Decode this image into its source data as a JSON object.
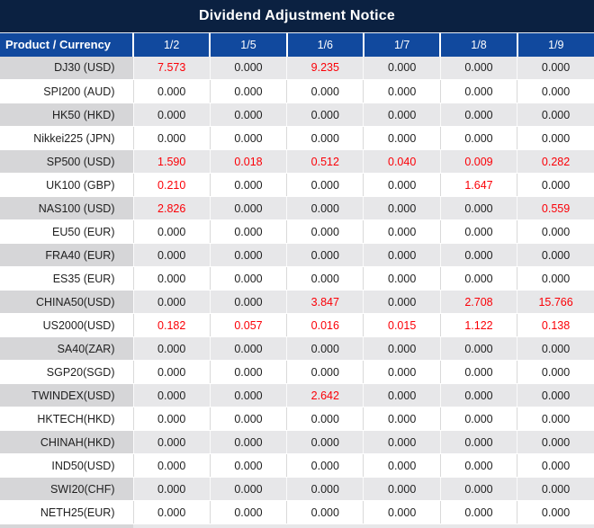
{
  "title": "Dividend Adjustment Notice",
  "colors": {
    "title-bg": "#0b2141",
    "header-bg": "#11499e",
    "row-gray-product": "#d6d6d8",
    "row-gray-value": "#e7e7e9",
    "row-white": "#ffffff",
    "text-dark": "#1f1f1f",
    "text-red": "#fb0007",
    "sep-gray": "#d9d9d9",
    "sep-white": "#fafafa"
  },
  "chart_data": {
    "type": "table",
    "title": "Dividend Adjustment Notice",
    "columns": [
      "Product / Currency",
      "1/2",
      "1/5",
      "1/6",
      "1/7",
      "1/8",
      "1/9"
    ],
    "rows": [
      {
        "product": "DJ30 (USD)",
        "values": [
          "7.573",
          "0.000",
          "9.235",
          "0.000",
          "0.000",
          "0.000"
        ],
        "red": [
          true,
          false,
          true,
          false,
          false,
          false
        ]
      },
      {
        "product": "SPI200 (AUD)",
        "values": [
          "0.000",
          "0.000",
          "0.000",
          "0.000",
          "0.000",
          "0.000"
        ],
        "red": [
          false,
          false,
          false,
          false,
          false,
          false
        ]
      },
      {
        "product": "HK50 (HKD)",
        "values": [
          "0.000",
          "0.000",
          "0.000",
          "0.000",
          "0.000",
          "0.000"
        ],
        "red": [
          false,
          false,
          false,
          false,
          false,
          false
        ]
      },
      {
        "product": "Nikkei225 (JPN)",
        "values": [
          "0.000",
          "0.000",
          "0.000",
          "0.000",
          "0.000",
          "0.000"
        ],
        "red": [
          false,
          false,
          false,
          false,
          false,
          false
        ]
      },
      {
        "product": "SP500 (USD)",
        "values": [
          "1.590",
          "0.018",
          "0.512",
          "0.040",
          "0.009",
          "0.282"
        ],
        "red": [
          true,
          true,
          true,
          true,
          true,
          true
        ]
      },
      {
        "product": "UK100 (GBP)",
        "values": [
          "0.210",
          "0.000",
          "0.000",
          "0.000",
          "1.647",
          "0.000"
        ],
        "red": [
          true,
          false,
          false,
          false,
          true,
          false
        ]
      },
      {
        "product": "NAS100 (USD)",
        "values": [
          "2.826",
          "0.000",
          "0.000",
          "0.000",
          "0.000",
          "0.559"
        ],
        "red": [
          true,
          false,
          false,
          false,
          false,
          true
        ]
      },
      {
        "product": "EU50 (EUR)",
        "values": [
          "0.000",
          "0.000",
          "0.000",
          "0.000",
          "0.000",
          "0.000"
        ],
        "red": [
          false,
          false,
          false,
          false,
          false,
          false
        ]
      },
      {
        "product": "FRA40 (EUR)",
        "values": [
          "0.000",
          "0.000",
          "0.000",
          "0.000",
          "0.000",
          "0.000"
        ],
        "red": [
          false,
          false,
          false,
          false,
          false,
          false
        ]
      },
      {
        "product": "ES35 (EUR)",
        "values": [
          "0.000",
          "0.000",
          "0.000",
          "0.000",
          "0.000",
          "0.000"
        ],
        "red": [
          false,
          false,
          false,
          false,
          false,
          false
        ]
      },
      {
        "product": "CHINA50(USD)",
        "values": [
          "0.000",
          "0.000",
          "3.847",
          "0.000",
          "2.708",
          "15.766"
        ],
        "red": [
          false,
          false,
          true,
          false,
          true,
          true
        ]
      },
      {
        "product": "US2000(USD)",
        "values": [
          "0.182",
          "0.057",
          "0.016",
          "0.015",
          "1.122",
          "0.138"
        ],
        "red": [
          true,
          true,
          true,
          true,
          true,
          true
        ]
      },
      {
        "product": "SA40(ZAR)",
        "values": [
          "0.000",
          "0.000",
          "0.000",
          "0.000",
          "0.000",
          "0.000"
        ],
        "red": [
          false,
          false,
          false,
          false,
          false,
          false
        ]
      },
      {
        "product": "SGP20(SGD)",
        "values": [
          "0.000",
          "0.000",
          "0.000",
          "0.000",
          "0.000",
          "0.000"
        ],
        "red": [
          false,
          false,
          false,
          false,
          false,
          false
        ]
      },
      {
        "product": "TWINDEX(USD)",
        "values": [
          "0.000",
          "0.000",
          "2.642",
          "0.000",
          "0.000",
          "0.000"
        ],
        "red": [
          false,
          false,
          true,
          false,
          false,
          false
        ]
      },
      {
        "product": "HKTECH(HKD)",
        "values": [
          "0.000",
          "0.000",
          "0.000",
          "0.000",
          "0.000",
          "0.000"
        ],
        "red": [
          false,
          false,
          false,
          false,
          false,
          false
        ]
      },
      {
        "product": "CHINAH(HKD)",
        "values": [
          "0.000",
          "0.000",
          "0.000",
          "0.000",
          "0.000",
          "0.000"
        ],
        "red": [
          false,
          false,
          false,
          false,
          false,
          false
        ]
      },
      {
        "product": "IND50(USD)",
        "values": [
          "0.000",
          "0.000",
          "0.000",
          "0.000",
          "0.000",
          "0.000"
        ],
        "red": [
          false,
          false,
          false,
          false,
          false,
          false
        ]
      },
      {
        "product": "SWI20(CHF)",
        "values": [
          "0.000",
          "0.000",
          "0.000",
          "0.000",
          "0.000",
          "0.000"
        ],
        "red": [
          false,
          false,
          false,
          false,
          false,
          false
        ]
      },
      {
        "product": "NETH25(EUR)",
        "values": [
          "0.000",
          "0.000",
          "0.000",
          "0.000",
          "0.000",
          "0.000"
        ],
        "red": [
          false,
          false,
          false,
          false,
          false,
          false
        ]
      }
    ]
  }
}
